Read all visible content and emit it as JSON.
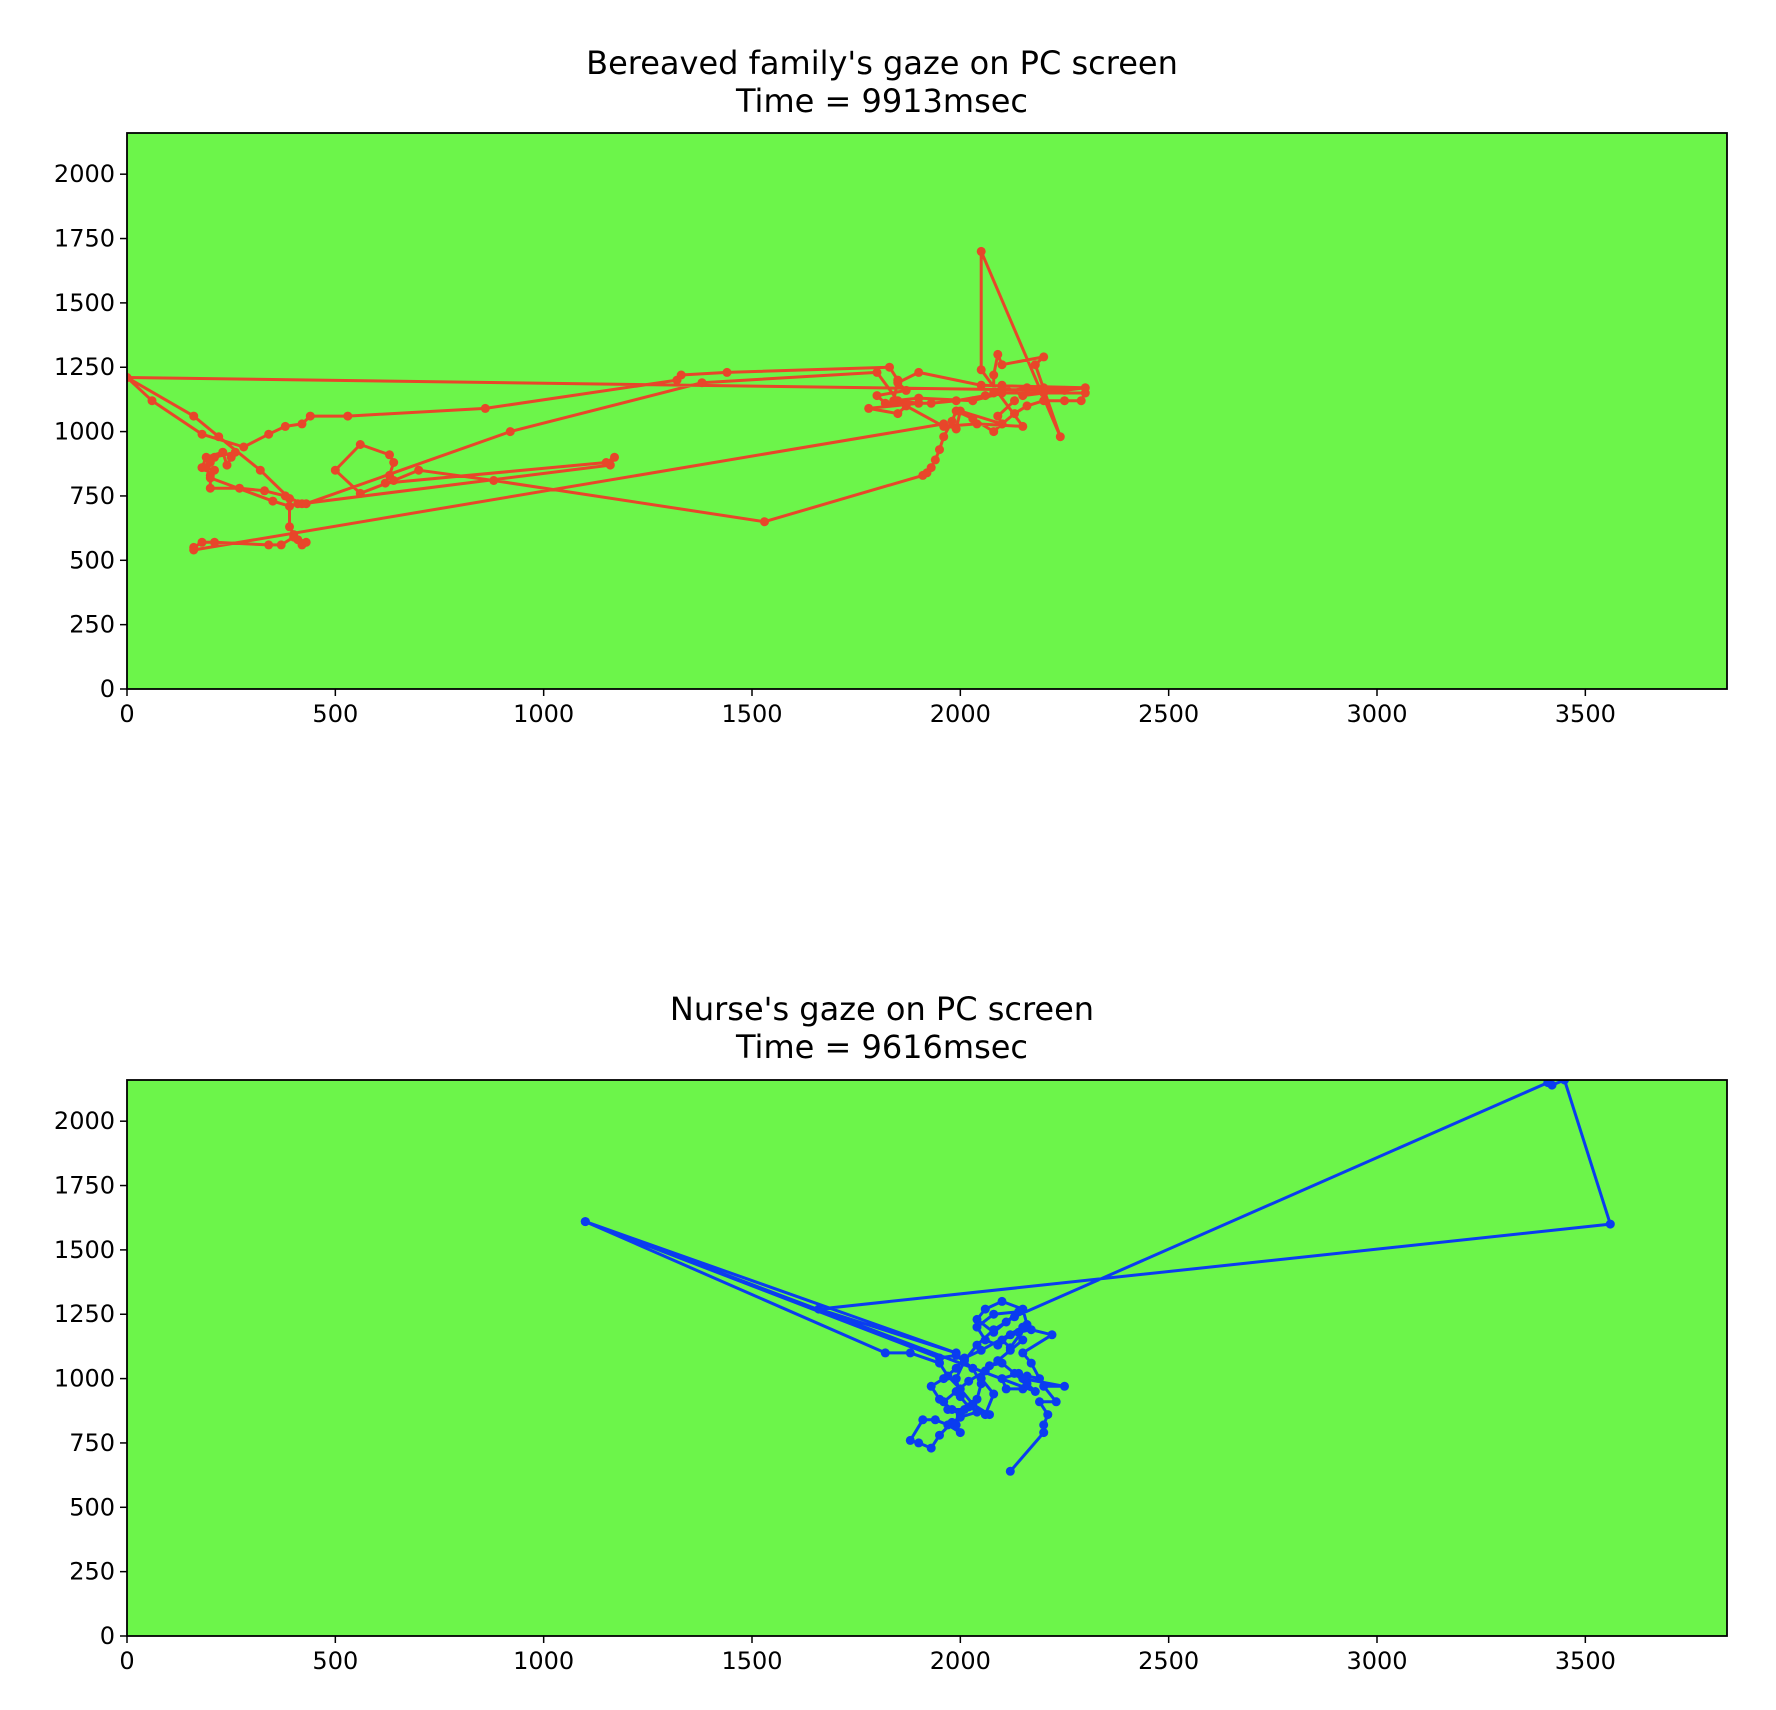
{
  "colors": {
    "background": "#6cf54a",
    "bereaved": "#e8462a",
    "nurse": "#0a3cf0"
  },
  "chart_data": [
    {
      "type": "line",
      "title": "Bereaved family's gaze on PC screen",
      "subtitle": "Time = 9913msec",
      "xlim": [
        0,
        3840
      ],
      "ylim": [
        0,
        2160
      ],
      "xticks": [
        0,
        500,
        1000,
        1500,
        2000,
        2500,
        3000,
        3500
      ],
      "yticks": [
        0,
        250,
        500,
        750,
        1000,
        1250,
        1500,
        1750,
        2000
      ],
      "grid": false,
      "markers": true,
      "series": [
        {
          "color": "#e8462a",
          "points": [
            [
              0,
              1210
            ],
            [
              60,
              1120
            ],
            [
              180,
              990
            ],
            [
              280,
              940
            ],
            [
              340,
              990
            ],
            [
              380,
              1020
            ],
            [
              420,
              1030
            ],
            [
              440,
              1060
            ],
            [
              530,
              1060
            ],
            [
              860,
              1090
            ],
            [
              1320,
              1200
            ],
            [
              1330,
              1220
            ],
            [
              1440,
              1230
            ],
            [
              1830,
              1250
            ],
            [
              1850,
              1200
            ],
            [
              1840,
              1120
            ],
            [
              1900,
              1130
            ],
            [
              2030,
              1120
            ],
            [
              2100,
              1150
            ],
            [
              2200,
              1150
            ],
            [
              2300,
              1150
            ],
            [
              2290,
              1120
            ],
            [
              2250,
              1120
            ],
            [
              2200,
              1120
            ],
            [
              2160,
              1100
            ],
            [
              2130,
              1070
            ],
            [
              2100,
              1030
            ],
            [
              2080,
              1000
            ],
            [
              2030,
              1050
            ],
            [
              1990,
              1080
            ],
            [
              1980,
              1040
            ],
            [
              1960,
              980
            ],
            [
              1950,
              930
            ],
            [
              1940,
              890
            ],
            [
              1930,
              860
            ],
            [
              1920,
              840
            ],
            [
              1910,
              830
            ],
            [
              1530,
              650
            ],
            [
              880,
              810
            ],
            [
              700,
              850
            ],
            [
              640,
              810
            ],
            [
              560,
              760
            ],
            [
              500,
              850
            ],
            [
              560,
              950
            ],
            [
              630,
              910
            ],
            [
              640,
              880
            ],
            [
              630,
              830
            ],
            [
              620,
              800
            ],
            [
              1150,
              880
            ],
            [
              1170,
              900
            ],
            [
              1160,
              870
            ],
            [
              420,
              720
            ],
            [
              380,
              750
            ],
            [
              330,
              770
            ],
            [
              270,
              780
            ],
            [
              200,
              780
            ],
            [
              200,
              830
            ],
            [
              210,
              850
            ],
            [
              180,
              860
            ],
            [
              190,
              900
            ],
            [
              230,
              920
            ],
            [
              240,
              870
            ],
            [
              250,
              900
            ],
            [
              260,
              920
            ],
            [
              210,
              900
            ],
            [
              200,
              880
            ],
            [
              190,
              860
            ],
            [
              200,
              820
            ],
            [
              350,
              730
            ],
            [
              390,
              710
            ],
            [
              410,
              720
            ],
            [
              430,
              720
            ],
            [
              920,
              1000
            ],
            [
              1380,
              1190
            ],
            [
              1800,
              1230
            ],
            [
              1850,
              1120
            ],
            [
              1900,
              1110
            ],
            [
              1780,
              1090
            ],
            [
              1850,
              1070
            ],
            [
              1870,
              1100
            ],
            [
              1960,
              1020
            ],
            [
              2040,
              1030
            ],
            [
              2150,
              1020
            ],
            [
              2050,
              1240
            ],
            [
              2050,
              1700
            ],
            [
              2240,
              980
            ],
            [
              2180,
              1260
            ],
            [
              2200,
              1290
            ],
            [
              2100,
              1260
            ],
            [
              2090,
              1300
            ],
            [
              2080,
              1220
            ],
            [
              2080,
              1150
            ],
            [
              2100,
              1180
            ],
            [
              2150,
              1140
            ],
            [
              2300,
              1170
            ],
            [
              2050,
              1180
            ],
            [
              1900,
              1230
            ],
            [
              1850,
              1190
            ],
            [
              1870,
              1160
            ],
            [
              1800,
              1140
            ],
            [
              1820,
              1110
            ],
            [
              1930,
              1110
            ],
            [
              1990,
              1120
            ],
            [
              2060,
              1140
            ],
            [
              2160,
              1170
            ],
            [
              2200,
              1170
            ],
            [
              2250,
              1160
            ],
            [
              0,
              1210
            ],
            [
              160,
              1060
            ],
            [
              220,
              980
            ],
            [
              320,
              850
            ],
            [
              390,
              740
            ],
            [
              390,
              630
            ],
            [
              400,
              600
            ],
            [
              410,
              580
            ],
            [
              420,
              560
            ],
            [
              430,
              570
            ],
            [
              400,
              590
            ],
            [
              370,
              560
            ],
            [
              340,
              560
            ],
            [
              210,
              570
            ],
            [
              180,
              570
            ],
            [
              160,
              550
            ],
            [
              160,
              540
            ],
            [
              1960,
              1030
            ],
            [
              1990,
              1010
            ],
            [
              2000,
              1080
            ],
            [
              2100,
              1030
            ],
            [
              2090,
              1060
            ],
            [
              2130,
              1120
            ]
          ]
        }
      ]
    },
    {
      "type": "line",
      "title": "Nurse's gaze on PC screen",
      "subtitle": "Time = 9616msec",
      "xlim": [
        0,
        3840
      ],
      "ylim": [
        0,
        2160
      ],
      "xticks": [
        0,
        500,
        1000,
        1500,
        2000,
        2500,
        3000,
        3500
      ],
      "yticks": [
        0,
        250,
        500,
        750,
        1000,
        1250,
        1500,
        1750,
        2000
      ],
      "grid": false,
      "markers": true,
      "series": [
        {
          "color": "#0a3cf0",
          "points": [
            [
              2120,
              640
            ],
            [
              2200,
              790
            ],
            [
              2200,
              820
            ],
            [
              2210,
              860
            ],
            [
              2190,
              910
            ],
            [
              2230,
              910
            ],
            [
              2200,
              970
            ],
            [
              2250,
              970
            ],
            [
              2150,
              1000
            ],
            [
              2140,
              1020
            ],
            [
              2100,
              1000
            ],
            [
              2110,
              960
            ],
            [
              2150,
              960
            ],
            [
              2160,
              1010
            ],
            [
              2190,
              1000
            ],
            [
              2170,
              1060
            ],
            [
              2150,
              1100
            ],
            [
              2220,
              1170
            ],
            [
              2170,
              1190
            ],
            [
              2140,
              1180
            ],
            [
              2100,
              1150
            ],
            [
              2120,
              1120
            ],
            [
              2160,
              1210
            ],
            [
              2150,
              1270
            ],
            [
              2100,
              1300
            ],
            [
              2060,
              1270
            ],
            [
              2040,
              1230
            ],
            [
              2080,
              1180
            ],
            [
              2110,
              1220
            ],
            [
              2140,
              1260
            ],
            [
              2080,
              1250
            ],
            [
              2040,
              1200
            ],
            [
              2060,
              1150
            ],
            [
              2090,
              1130
            ],
            [
              2120,
              1170
            ],
            [
              2150,
              1200
            ],
            [
              2050,
              1110
            ],
            [
              2010,
              1080
            ],
            [
              1990,
              1040
            ],
            [
              1960,
              1000
            ],
            [
              1930,
              970
            ],
            [
              1950,
              920
            ],
            [
              1980,
              880
            ],
            [
              2000,
              860
            ],
            [
              1990,
              820
            ],
            [
              2000,
              790
            ],
            [
              1970,
              820
            ],
            [
              1940,
              840
            ],
            [
              1910,
              840
            ],
            [
              1880,
              760
            ],
            [
              1900,
              750
            ],
            [
              1930,
              730
            ],
            [
              1950,
              780
            ],
            [
              1980,
              830
            ],
            [
              2000,
              850
            ],
            [
              2040,
              870
            ],
            [
              2070,
              860
            ],
            [
              2030,
              900
            ],
            [
              2000,
              960
            ],
            [
              1970,
              1010
            ],
            [
              1950,
              1060
            ],
            [
              1880,
              1100
            ],
            [
              1820,
              1100
            ],
            [
              1100,
              1610
            ],
            [
              1990,
              1100
            ],
            [
              1660,
              1270
            ],
            [
              3560,
              1600
            ],
            [
              3450,
              2160
            ],
            [
              3420,
              2140
            ],
            [
              3410,
              2150
            ],
            [
              2130,
              1240
            ],
            [
              2080,
              1190
            ],
            [
              2040,
              1130
            ],
            [
              2010,
              1070
            ],
            [
              1990,
              1000
            ],
            [
              2000,
              930
            ],
            [
              2020,
              890
            ],
            [
              2060,
              860
            ],
            [
              2080,
              940
            ],
            [
              2050,
              1000
            ],
            [
              2070,
              1050
            ],
            [
              2100,
              1060
            ],
            [
              2130,
              1020
            ],
            [
              2160,
              980
            ],
            [
              2180,
              950
            ],
            [
              1100,
              1610
            ],
            [
              1950,
              1080
            ],
            [
              1990,
              1090
            ],
            [
              2030,
              1040
            ],
            [
              2050,
              980
            ],
            [
              2040,
              920
            ],
            [
              2010,
              880
            ],
            [
              1970,
              880
            ],
            [
              1960,
              910
            ],
            [
              1990,
              950
            ],
            [
              2020,
              990
            ],
            [
              2060,
              1030
            ],
            [
              2090,
              1070
            ],
            [
              2120,
              1110
            ],
            [
              2150,
              1150
            ]
          ]
        }
      ]
    }
  ]
}
